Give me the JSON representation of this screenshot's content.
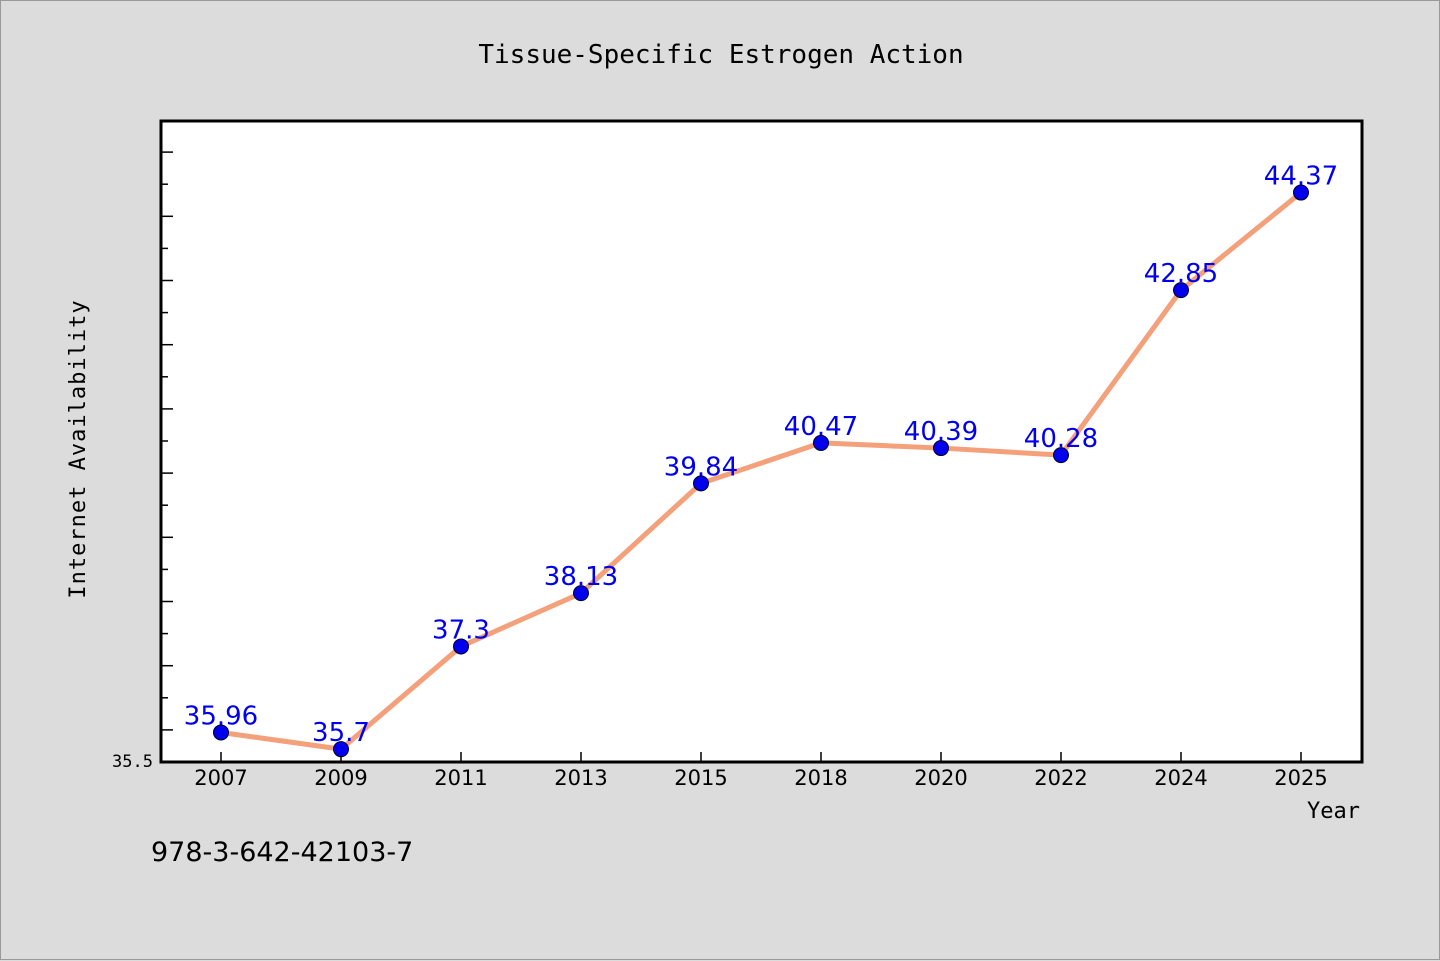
{
  "chart_data": {
    "type": "line",
    "title": "Tissue-Specific Estrogen Action",
    "xlabel": "Year",
    "ylabel": "Internet Availability",
    "categories": [
      "2007",
      "2009",
      "2011",
      "2013",
      "2015",
      "2018",
      "2020",
      "2022",
      "2024",
      "2025"
    ],
    "series": [
      {
        "values": [
          35.96,
          35.7,
          37.3,
          38.13,
          39.84,
          40.47,
          40.39,
          40.28,
          42.85,
          44.37
        ],
        "labels": [
          "35.96",
          "35.7",
          "37.3",
          "38.13",
          "39.84",
          "40.47",
          "40.39",
          "40.28",
          "42.85",
          "44.37"
        ]
      }
    ],
    "ylim": [
      35.5,
      45.5
    ],
    "y_tick_labels": [
      "35.5"
    ],
    "grid": false,
    "legend": "none",
    "colors": {
      "line": "#f4a07a",
      "marker": "#0000ee",
      "data_label": "#0000ee",
      "plot_bg": "#ffffff",
      "figure_bg": "#dcdcdc"
    }
  },
  "footer": {
    "isbn": "978-3-642-42103-7"
  }
}
